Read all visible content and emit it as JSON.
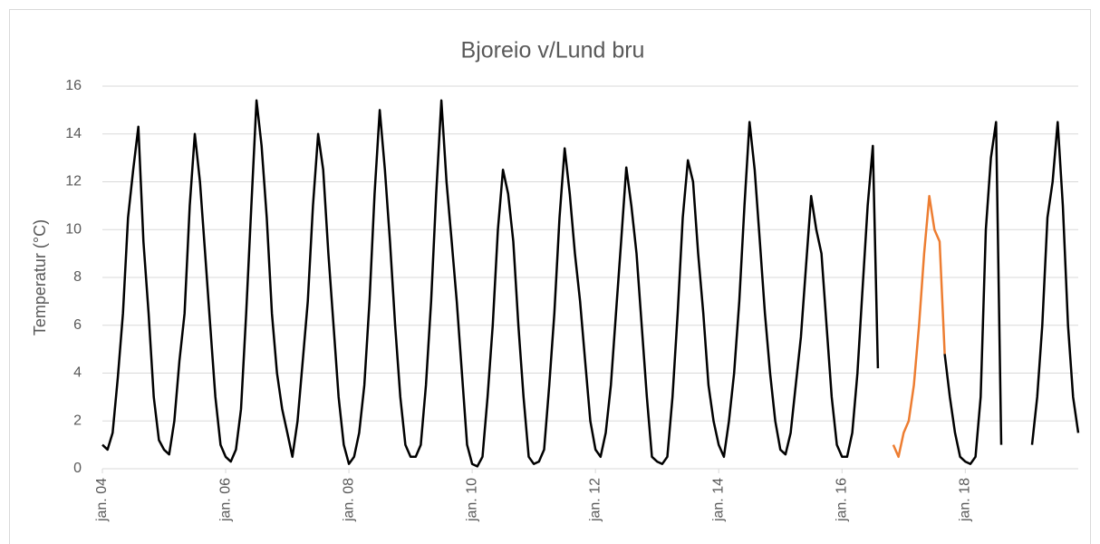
{
  "chart_data": {
    "type": "line",
    "title": "Bjoreio v/Lund bru",
    "y_label": "Temperatur (°C)",
    "x": [
      "2004-01",
      "2004-02",
      "2004-03",
      "2004-04",
      "2004-05",
      "2004-06",
      "2004-07",
      "2004-08",
      "2004-09",
      "2004-10",
      "2004-11",
      "2004-12",
      "2005-01",
      "2005-02",
      "2005-03",
      "2005-04",
      "2005-05",
      "2005-06",
      "2005-07",
      "2005-08",
      "2005-09",
      "2005-10",
      "2005-11",
      "2005-12",
      "2006-01",
      "2006-02",
      "2006-03",
      "2006-04",
      "2006-05",
      "2006-06",
      "2006-07",
      "2006-08",
      "2006-09",
      "2006-10",
      "2006-11",
      "2006-12",
      "2007-01",
      "2007-02",
      "2007-03",
      "2007-04",
      "2007-05",
      "2007-06",
      "2007-07",
      "2007-08",
      "2007-09",
      "2007-10",
      "2007-11",
      "2007-12",
      "2008-01",
      "2008-02",
      "2008-03",
      "2008-04",
      "2008-05",
      "2008-06",
      "2008-07",
      "2008-08",
      "2008-09",
      "2008-10",
      "2008-11",
      "2008-12",
      "2009-01",
      "2009-02",
      "2009-03",
      "2009-04",
      "2009-05",
      "2009-06",
      "2009-07",
      "2009-08",
      "2009-09",
      "2009-10",
      "2009-11",
      "2009-12",
      "2010-01",
      "2010-02",
      "2010-03",
      "2010-04",
      "2010-05",
      "2010-06",
      "2010-07",
      "2010-08",
      "2010-09",
      "2010-10",
      "2010-11",
      "2010-12",
      "2011-01",
      "2011-02",
      "2011-03",
      "2011-04",
      "2011-05",
      "2011-06",
      "2011-07",
      "2011-08",
      "2011-09",
      "2011-10",
      "2011-11",
      "2011-12",
      "2012-01",
      "2012-02",
      "2012-03",
      "2012-04",
      "2012-05",
      "2012-06",
      "2012-07",
      "2012-08",
      "2012-09",
      "2012-10",
      "2012-11",
      "2012-12",
      "2013-01",
      "2013-02",
      "2013-03",
      "2013-04",
      "2013-05",
      "2013-06",
      "2013-07",
      "2013-08",
      "2013-09",
      "2013-10",
      "2013-11",
      "2013-12",
      "2014-01",
      "2014-02",
      "2014-03",
      "2014-04",
      "2014-05",
      "2014-06",
      "2014-07",
      "2014-08",
      "2014-09",
      "2014-10",
      "2014-11",
      "2014-12",
      "2015-01",
      "2015-02",
      "2015-03",
      "2015-04",
      "2015-05",
      "2015-06",
      "2015-07",
      "2015-08",
      "2015-09",
      "2015-10",
      "2015-11",
      "2015-12",
      "2016-01",
      "2016-02",
      "2016-03",
      "2016-04",
      "2016-05",
      "2016-06",
      "2016-07",
      "2016-08",
      "2016-09",
      "2016-10",
      "2016-11",
      "2016-12",
      "2017-01",
      "2017-02",
      "2017-03",
      "2017-04",
      "2017-05",
      "2017-06",
      "2017-07",
      "2017-08",
      "2017-09",
      "2017-10",
      "2017-11",
      "2017-12",
      "2018-01",
      "2018-02",
      "2018-03",
      "2018-04",
      "2018-05",
      "2018-06",
      "2018-07",
      "2018-08",
      "2018-09",
      "2018-10",
      "2018-11",
      "2018-12",
      "2019-01",
      "2019-02",
      "2019-03",
      "2019-04",
      "2019-05",
      "2019-06",
      "2019-07",
      "2019-08",
      "2019-09",
      "2019-10",
      "2019-11"
    ],
    "series": [
      {
        "color": "#000000",
        "values": [
          1.0,
          0.8,
          1.5,
          3.8,
          6.5,
          10.5,
          12.5,
          14.3,
          9.5,
          6.5,
          3.0,
          1.2,
          0.8,
          0.6,
          2.0,
          4.5,
          6.5,
          11.0,
          14.0,
          12.0,
          9.0,
          6.0,
          3.0,
          1.0,
          0.5,
          0.3,
          0.8,
          2.5,
          6.5,
          11.0,
          15.4,
          13.5,
          10.5,
          6.5,
          4.0,
          2.5,
          1.5,
          0.5,
          2.0,
          4.5,
          7.0,
          11.0,
          14.0,
          12.5,
          9.0,
          6.0,
          3.0,
          1.0,
          0.2,
          0.5,
          1.5,
          3.5,
          7.0,
          11.5,
          15.0,
          12.5,
          9.5,
          6.0,
          3.0,
          1.0,
          0.5,
          0.5,
          1.0,
          3.5,
          7.0,
          11.5,
          15.4,
          12.0,
          9.5,
          7.0,
          4.0,
          1.0,
          0.2,
          0.1,
          0.5,
          3.0,
          6.0,
          10.0,
          12.5,
          11.5,
          9.5,
          6.0,
          3.0,
          0.5,
          0.2,
          0.3,
          0.8,
          3.5,
          6.5,
          10.5,
          13.4,
          11.5,
          9.0,
          7.0,
          4.5,
          2.0,
          0.8,
          0.5,
          1.5,
          3.5,
          6.5,
          9.5,
          12.6,
          11.0,
          9.0,
          6.0,
          3.0,
          0.5,
          0.3,
          0.2,
          0.5,
          3.0,
          6.5,
          10.5,
          12.9,
          12.0,
          9.0,
          6.5,
          3.5,
          2.0,
          1.0,
          0.5,
          2.0,
          4.0,
          7.0,
          11.0,
          14.5,
          12.5,
          9.5,
          6.5,
          4.0,
          2.0,
          0.8,
          0.6,
          1.5,
          3.5,
          5.5,
          8.5,
          11.4,
          10.0,
          9.0,
          6.0,
          3.0,
          1.0,
          0.5,
          0.5,
          1.5,
          4.0,
          7.5,
          11.0,
          13.5,
          4.2,
          null,
          null,
          null,
          null,
          null,
          null,
          null,
          null,
          null,
          null,
          null,
          null,
          4.8,
          3.0,
          1.5,
          0.5,
          0.3,
          0.2,
          0.5,
          3.0,
          10.0,
          13.0,
          14.5,
          1.0,
          null,
          null,
          null,
          null,
          null,
          1.0,
          3.0,
          6.0,
          10.5,
          12.0,
          14.5,
          11.0,
          6.0,
          3.0,
          1.5
        ]
      },
      {
        "color": "#ed7d31",
        "values": [
          null,
          null,
          null,
          null,
          null,
          null,
          null,
          null,
          null,
          null,
          null,
          null,
          null,
          null,
          null,
          null,
          null,
          null,
          null,
          null,
          null,
          null,
          null,
          null,
          null,
          null,
          null,
          null,
          null,
          null,
          null,
          null,
          null,
          null,
          null,
          null,
          null,
          null,
          null,
          null,
          null,
          null,
          null,
          null,
          null,
          null,
          null,
          null,
          null,
          null,
          null,
          null,
          null,
          null,
          null,
          null,
          null,
          null,
          null,
          null,
          null,
          null,
          null,
          null,
          null,
          null,
          null,
          null,
          null,
          null,
          null,
          null,
          null,
          null,
          null,
          null,
          null,
          null,
          null,
          null,
          null,
          null,
          null,
          null,
          null,
          null,
          null,
          null,
          null,
          null,
          null,
          null,
          null,
          null,
          null,
          null,
          null,
          null,
          null,
          null,
          null,
          null,
          null,
          null,
          null,
          null,
          null,
          null,
          null,
          null,
          null,
          null,
          null,
          null,
          null,
          null,
          null,
          null,
          null,
          null,
          null,
          null,
          null,
          null,
          null,
          null,
          null,
          null,
          null,
          null,
          null,
          null,
          null,
          null,
          null,
          null,
          null,
          null,
          null,
          null,
          null,
          null,
          null,
          null,
          null,
          null,
          null,
          null,
          null,
          null,
          null,
          null,
          null,
          null,
          1.0,
          0.5,
          1.5,
          2.0,
          3.5,
          6.0,
          9.0,
          11.4,
          10.0,
          9.5,
          4.8,
          null,
          null,
          null,
          null,
          null,
          null,
          null,
          null,
          null,
          null,
          null,
          null,
          null,
          null,
          null,
          null,
          null,
          null,
          null,
          null,
          null,
          null,
          null,
          null,
          null,
          null
        ]
      }
    ],
    "xlim": [
      "2004-01",
      "2019-11"
    ],
    "xticks": [
      {
        "value": "2004-01",
        "label": "jan. 04"
      },
      {
        "value": "2006-01",
        "label": "jan. 06"
      },
      {
        "value": "2008-01",
        "label": "jan. 08"
      },
      {
        "value": "2010-01",
        "label": "jan. 10"
      },
      {
        "value": "2012-01",
        "label": "jan. 12"
      },
      {
        "value": "2014-01",
        "label": "jan. 14"
      },
      {
        "value": "2016-01",
        "label": "jan. 16"
      },
      {
        "value": "2018-01",
        "label": "jan. 18"
      }
    ],
    "ylim": [
      0,
      16
    ],
    "yticks": [
      0,
      2,
      4,
      6,
      8,
      10,
      12,
      14,
      16
    ],
    "grid": true
  }
}
